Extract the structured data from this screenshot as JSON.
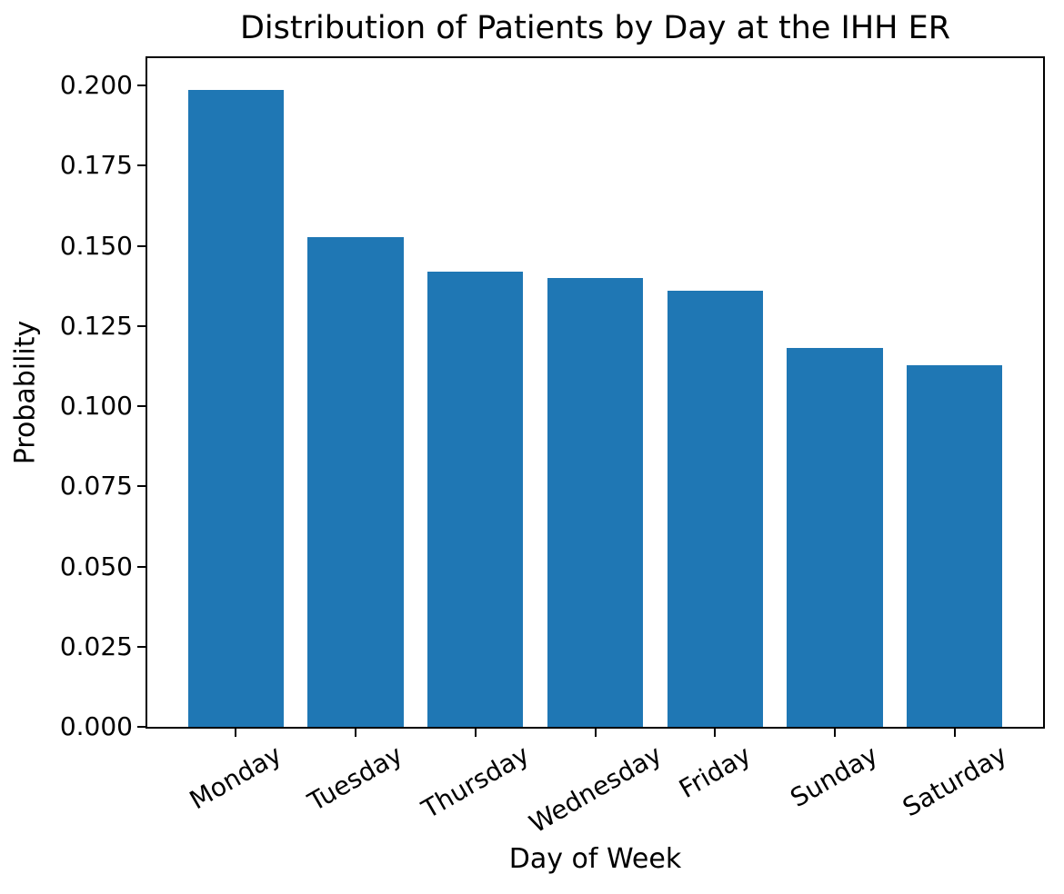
{
  "figure": {
    "title": "Distribution of Patients by Day at the IHH ER",
    "xlabel": "Day of Week",
    "ylabel": "Probability"
  },
  "chart_data": {
    "type": "bar",
    "title": "Distribution of Patients by Day at the IHH ER",
    "xlabel": "Day of Week",
    "ylabel": "Probability",
    "categories": [
      "Monday",
      "Tuesday",
      "Thursday",
      "Wednesday",
      "Friday",
      "Sunday",
      "Saturday"
    ],
    "values": [
      0.1985,
      0.1528,
      0.142,
      0.14,
      0.136,
      0.118,
      0.1128
    ],
    "yticks": [
      0.0,
      0.025,
      0.05,
      0.075,
      0.1,
      0.125,
      0.15,
      0.175,
      0.2
    ],
    "ytick_labels": [
      "0.000",
      "0.025",
      "0.050",
      "0.075",
      "0.100",
      "0.125",
      "0.150",
      "0.175",
      "0.200"
    ],
    "ylim": [
      0,
      0.2085
    ],
    "bar_color": "#1f77b4",
    "text_color": "#000000",
    "axis_color": "#000000",
    "x_tick_rotation_deg": 30,
    "bar_width_fraction": 0.8,
    "grid": false,
    "legend": "none"
  }
}
